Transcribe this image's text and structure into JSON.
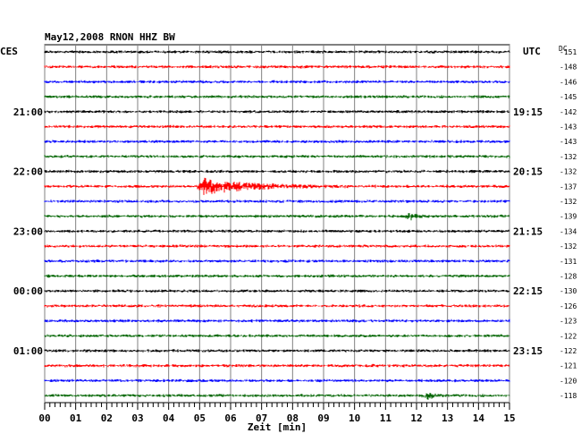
{
  "chart_data": {
    "type": "line",
    "title": "May12,2008   RNON HHZ BW",
    "left_timezone": "CES",
    "right_timezone": "UTC",
    "offset_header": "DC",
    "xlabel": "Zeit [min]",
    "xlim": [
      0,
      15
    ],
    "x_ticks": [
      "00",
      "01",
      "02",
      "03",
      "04",
      "05",
      "06",
      "07",
      "08",
      "09",
      "10",
      "11",
      "12",
      "13",
      "14",
      "15"
    ],
    "trace_colors": [
      "#000000",
      "#ff0000",
      "#0000ff",
      "#006400"
    ],
    "left_time_labels": [
      {
        "trace": 4,
        "label": "21:00"
      },
      {
        "trace": 8,
        "label": "22:00"
      },
      {
        "trace": 12,
        "label": "23:00"
      },
      {
        "trace": 16,
        "label": "00:00"
      },
      {
        "trace": 20,
        "label": "01:00"
      }
    ],
    "right_time_labels": [
      {
        "trace": 4,
        "label": "19:15"
      },
      {
        "trace": 8,
        "label": "20:15"
      },
      {
        "trace": 12,
        "label": "21:15"
      },
      {
        "trace": 16,
        "label": "22:15"
      },
      {
        "trace": 20,
        "label": "23:15"
      }
    ],
    "trace_offsets": [
      "-151",
      "-148",
      "-146",
      "-145",
      "-142",
      "-143",
      "-143",
      "-132",
      "-132",
      "-137",
      "-132",
      "-139",
      "-134",
      "-132",
      "-131",
      "-128",
      "-130",
      "-126",
      "-123",
      "-122",
      "-122",
      "-121",
      "-120",
      "-118"
    ],
    "events": [
      {
        "trace": 9,
        "start_min": 4.9,
        "peak_min": 5.1,
        "end_min": 9.9,
        "amplitude": "large"
      },
      {
        "trace": 11,
        "start_min": 11.6,
        "peak_min": 11.8,
        "end_min": 12.4,
        "amplitude": "small"
      },
      {
        "trace": 23,
        "start_min": 12.1,
        "peak_min": 12.4,
        "end_min": 13.0,
        "amplitude": "small"
      }
    ]
  }
}
